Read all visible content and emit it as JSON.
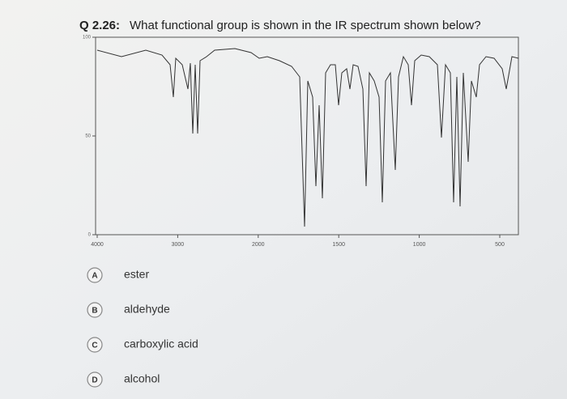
{
  "question": {
    "number": "Q 2.26:",
    "text": "What functional group is shown in the IR spectrum shown below?"
  },
  "spectrum": {
    "xticks": [
      4000,
      3000,
      2000,
      1500,
      1000,
      500
    ],
    "yticks": [
      100,
      50,
      0
    ],
    "ylim": [
      0,
      100
    ]
  },
  "options": [
    {
      "letter": "A",
      "text": "ester"
    },
    {
      "letter": "B",
      "text": "aldehyde"
    },
    {
      "letter": "C",
      "text": "carboxylic acid"
    },
    {
      "letter": "D",
      "text": "alcohol"
    }
  ]
}
